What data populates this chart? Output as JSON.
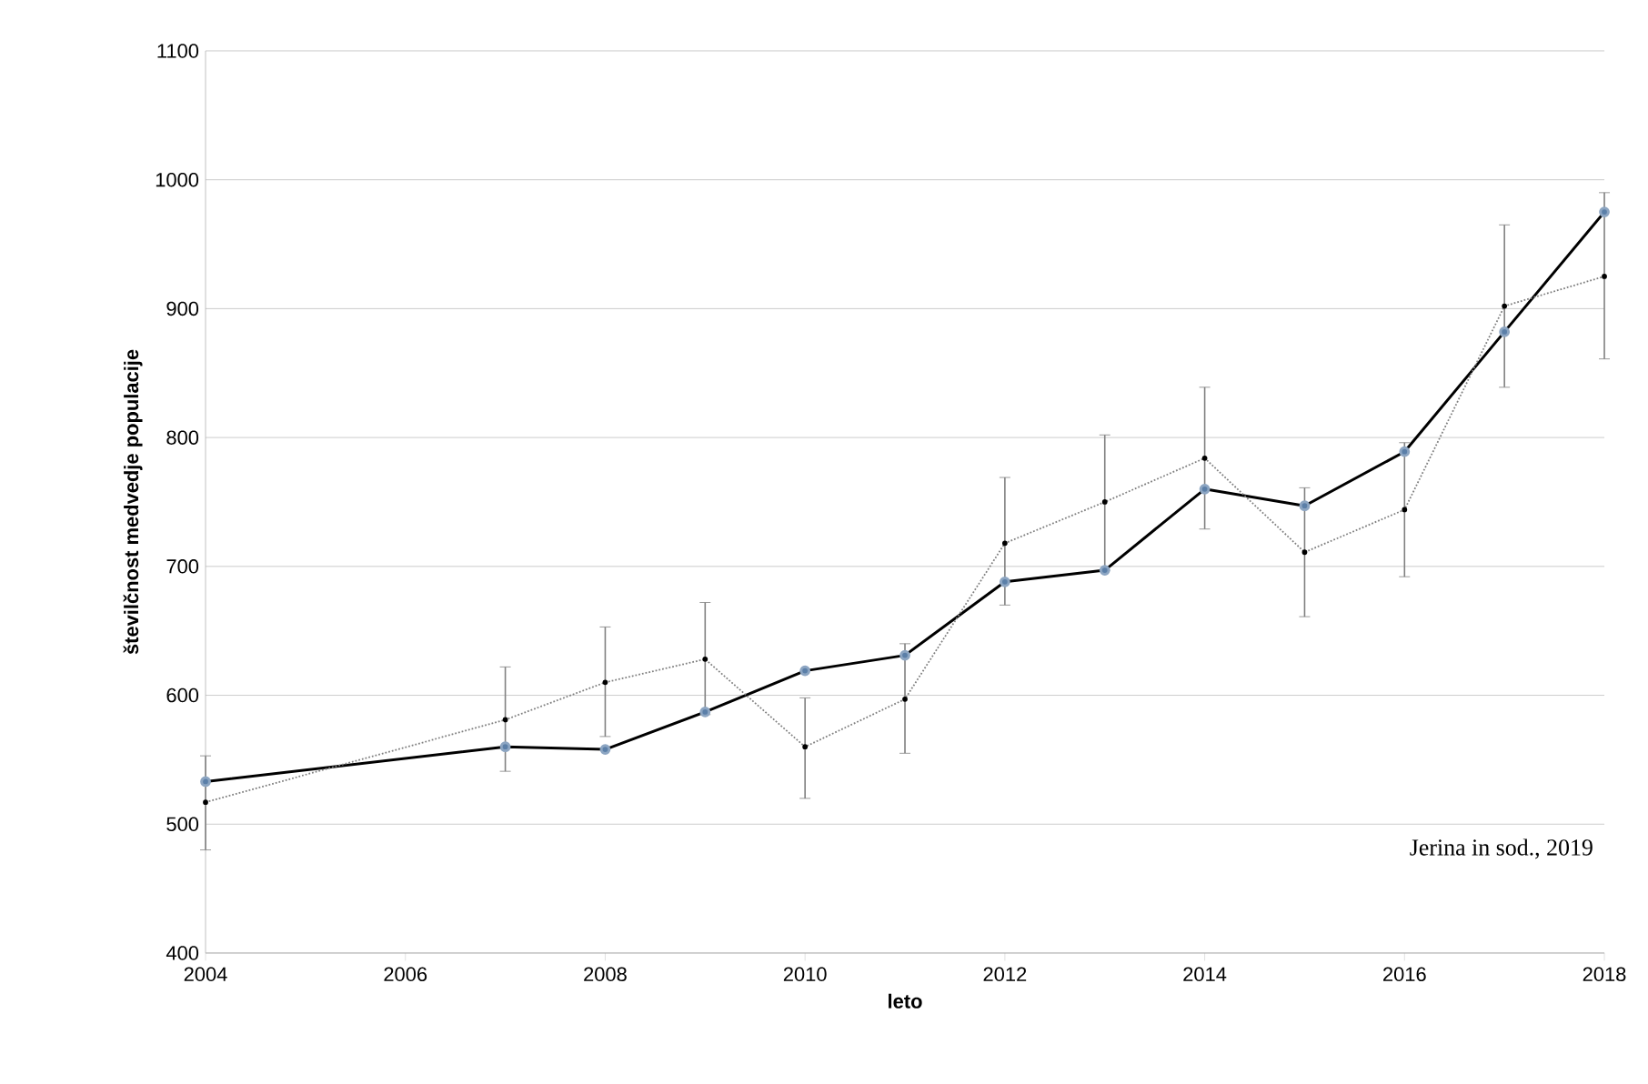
{
  "chart_data": {
    "type": "line",
    "xlabel": "leto",
    "ylabel": "številčnost medvedje populacije",
    "x": [
      2004,
      2007,
      2008,
      2009,
      2010,
      2011,
      2012,
      2013,
      2014,
      2015,
      2016,
      2017,
      2018
    ],
    "series": [
      {
        "color": "#000000",
        "marker": "circle",
        "line_style": "solid",
        "values": [
          533,
          560,
          558,
          587,
          619,
          631,
          688,
          697,
          760,
          747,
          789,
          882,
          975
        ]
      },
      {
        "color": "#808080",
        "marker": "circle",
        "line_style": "dotted",
        "values": [
          517,
          581,
          610,
          628,
          560,
          597,
          718,
          750,
          784,
          711,
          744,
          902,
          925
        ],
        "errors": [
          [
            480,
            553
          ],
          [
            541,
            622
          ],
          [
            568,
            653
          ],
          [
            585,
            672
          ],
          [
            520,
            598
          ],
          [
            555,
            640
          ],
          [
            670,
            769
          ],
          [
            697,
            802
          ],
          [
            729,
            839
          ],
          [
            661,
            761
          ],
          [
            692,
            796
          ],
          [
            839,
            965
          ],
          [
            861,
            990
          ]
        ]
      }
    ],
    "xlim": [
      2004,
      2018
    ],
    "xticks": [
      2004,
      2006,
      2008,
      2010,
      2012,
      2014,
      2016,
      2018
    ],
    "ylim": [
      400,
      1100
    ],
    "yticks": [
      400,
      500,
      600,
      700,
      800,
      900,
      1000,
      1100
    ],
    "grid": "y",
    "annotations": [
      {
        "text": "Jerina in sod., 2019"
      }
    ]
  }
}
